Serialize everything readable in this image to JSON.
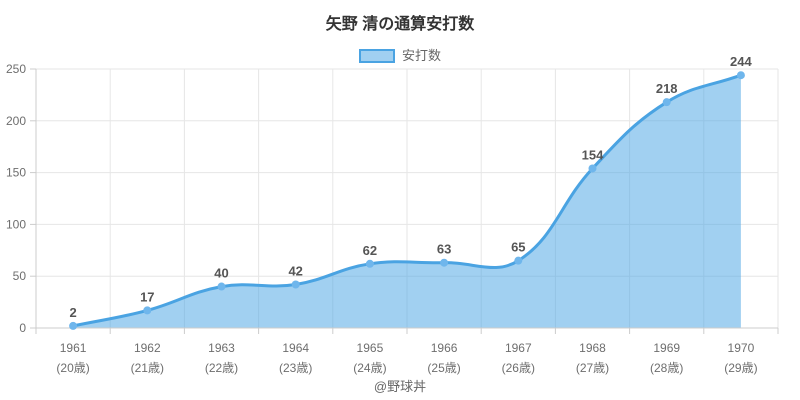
{
  "header": {
    "title": "矢野 清の通算安打数"
  },
  "legend": {
    "items": [
      {
        "label": "安打数"
      }
    ]
  },
  "footer": {
    "credit": "@野球丼"
  },
  "colors": {
    "line": "#4aa3e2",
    "marker": "#6fb6ec",
    "area_fill": "rgba(74,164,229,0.52)",
    "grid": "#e6e6e6",
    "axis": "#cccccc",
    "title_text": "#333333",
    "tick_text": "#6e6e6e",
    "point_label_text": "#555555"
  },
  "chart_data": {
    "type": "area",
    "title": "矢野 清の通算安打数",
    "categories": [
      "1961",
      "1962",
      "1963",
      "1964",
      "1965",
      "1966",
      "1967",
      "1968",
      "1969",
      "1970"
    ],
    "category_sublabels": [
      "(20歳)",
      "(21歳)",
      "(22歳)",
      "(23歳)",
      "(24歳)",
      "(25歳)",
      "(26歳)",
      "(27歳)",
      "(28歳)",
      "(29歳)"
    ],
    "series": [
      {
        "name": "安打数",
        "values": [
          2,
          17,
          40,
          42,
          62,
          63,
          65,
          154,
          218,
          244
        ]
      }
    ],
    "xlabel": "",
    "ylabel": "",
    "ylim": [
      0,
      250
    ],
    "yticks": [
      0,
      50,
      100,
      150,
      200,
      250
    ],
    "grid": true,
    "legend_position": "top",
    "point_labels_shown": true,
    "line_smoothing": "bezier"
  }
}
